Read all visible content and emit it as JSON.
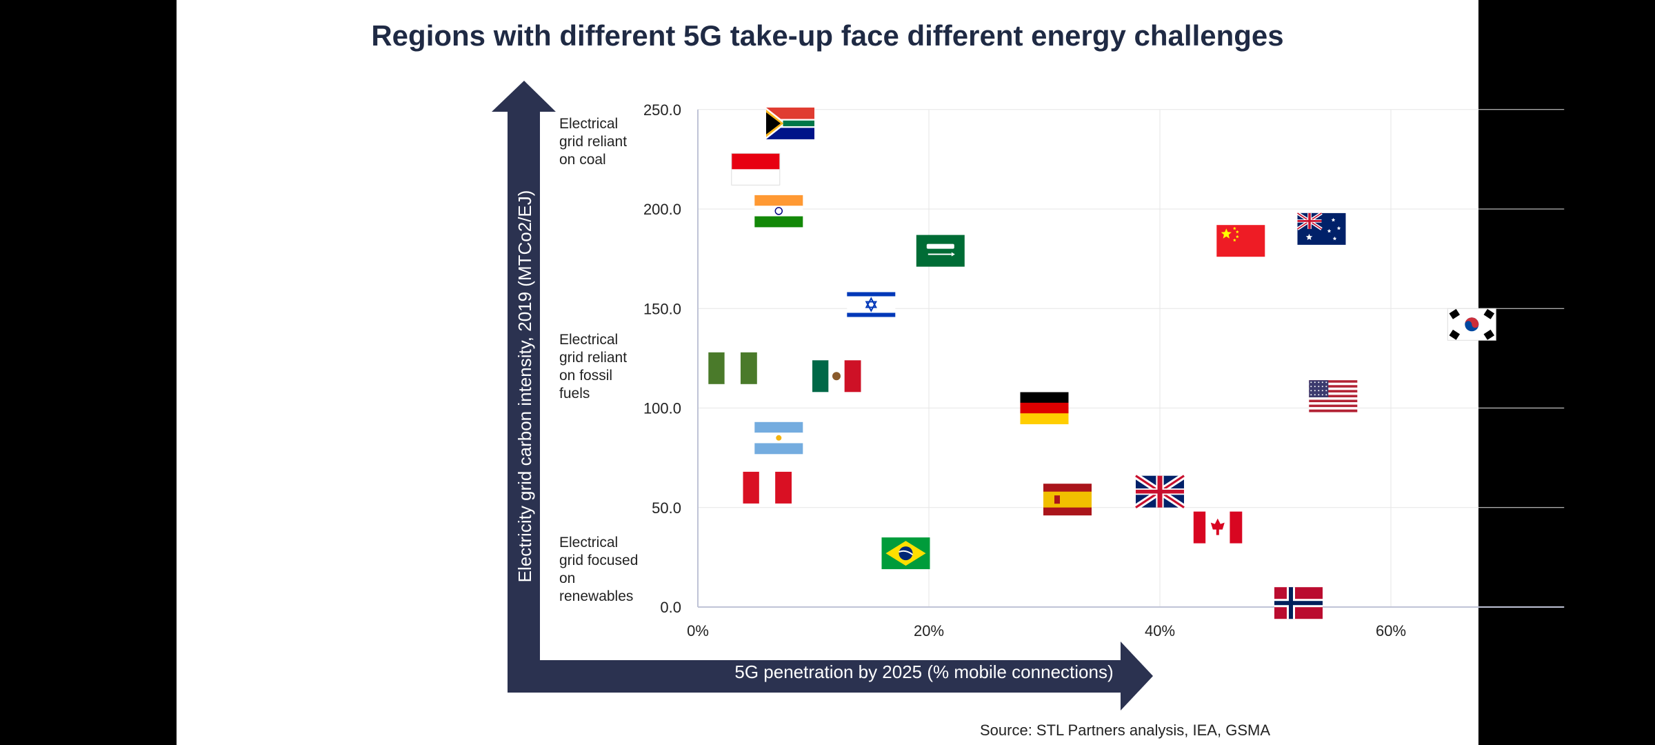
{
  "title": "Regions with different 5G take-up face different energy challenges",
  "source": "Source: STL Partners analysis, IEA, GSMA",
  "band_labels": {
    "coal": "Electrical grid reliant on coal",
    "fossil": "Electrical grid reliant on fossil fuels",
    "renewables": "Electrical grid focused on renewables"
  },
  "colors": {
    "arrow": "#2b3250",
    "title": "#1f2a44",
    "grid": "#e6e6e6"
  },
  "chart_data": {
    "type": "scatter",
    "xlabel": "5G penetration by 2025 (% mobile connections)",
    "ylabel": "Electricity grid carbon intensity, 2019 (MTCo2/EJ)",
    "xlim": [
      0,
      75
    ],
    "ylim": [
      0,
      250
    ],
    "x_ticks": [
      "0%",
      "20%",
      "40%",
      "60%"
    ],
    "x_tick_values": [
      0,
      20,
      40,
      60
    ],
    "y_ticks": [
      "0.0",
      "50.0",
      "100.0",
      "150.0",
      "200.0",
      "250.0"
    ],
    "y_tick_values": [
      0,
      50,
      100,
      150,
      200,
      250
    ],
    "grid": true,
    "markers": "national flags",
    "points": [
      {
        "flag": "south-africa",
        "x": 8,
        "y": 243
      },
      {
        "flag": "indonesia",
        "x": 5,
        "y": 220
      },
      {
        "flag": "india",
        "x": 7,
        "y": 199
      },
      {
        "flag": "saudi-arabia",
        "x": 21,
        "y": 179
      },
      {
        "flag": "israel",
        "x": 15,
        "y": 152
      },
      {
        "flag": "nigeria",
        "x": 3,
        "y": 120
      },
      {
        "flag": "mexico",
        "x": 12,
        "y": 116
      },
      {
        "flag": "argentina",
        "x": 7,
        "y": 85
      },
      {
        "flag": "peru",
        "x": 6,
        "y": 60
      },
      {
        "flag": "brazil",
        "x": 18,
        "y": 27
      },
      {
        "flag": "germany",
        "x": 30,
        "y": 100
      },
      {
        "flag": "spain",
        "x": 32,
        "y": 54
      },
      {
        "flag": "united-kingdom",
        "x": 40,
        "y": 58
      },
      {
        "flag": "canada",
        "x": 45,
        "y": 40
      },
      {
        "flag": "china",
        "x": 47,
        "y": 184
      },
      {
        "flag": "australia",
        "x": 54,
        "y": 190
      },
      {
        "flag": "south-korea",
        "x": 67,
        "y": 142
      },
      {
        "flag": "united-states",
        "x": 55,
        "y": 106
      },
      {
        "flag": "norway",
        "x": 52,
        "y": 2
      }
    ]
  }
}
